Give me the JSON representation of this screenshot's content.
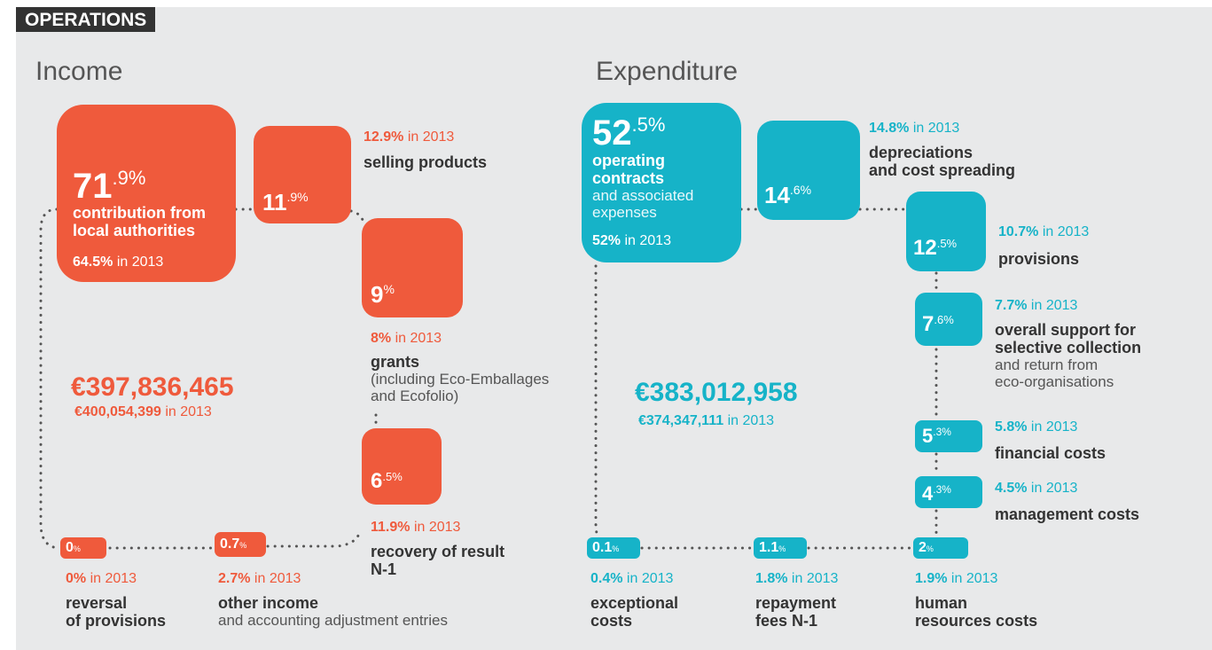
{
  "header": "OPERATIONS",
  "sections": [
    {
      "title": "Income",
      "color": "#ef5a3c",
      "total": "€397,836,465",
      "total_prev": {
        "value": "€400,054,399",
        "suffix": "in 2013"
      },
      "items": [
        {
          "big": "71",
          "small": ".9%",
          "bold": [
            "contribution from",
            "local authorities"
          ],
          "prev": {
            "value": "64.5%",
            "suffix": "in 2013"
          }
        },
        {
          "big": "11",
          "small": ".9%",
          "bold": [
            "selling products"
          ],
          "prev": {
            "value": "12.9%",
            "suffix": "in 2013"
          }
        },
        {
          "big": "9",
          "small": "%",
          "bold": [
            "grants"
          ],
          "normal": [
            "(including Eco-Emballages",
            "and Ecofolio)"
          ],
          "prev": {
            "value": "8%",
            "suffix": "in 2013"
          }
        },
        {
          "big": "6",
          "small": ".5%",
          "bold": [
            "recovery of result",
            "N-1"
          ],
          "prev": {
            "value": "11.9%",
            "suffix": "in 2013"
          }
        },
        {
          "big": "0",
          "small": "%",
          "bold": [
            "reversal",
            "of provisions"
          ],
          "prev": {
            "value": "0%",
            "suffix": "in 2013"
          }
        },
        {
          "big": "0.7",
          "small": "%",
          "bold": [
            "other income"
          ],
          "normal": [
            "and accounting adjustment entries"
          ],
          "prev": {
            "value": "2.7%",
            "suffix": "in 2013"
          }
        }
      ]
    },
    {
      "title": "Expenditure",
      "color": "#16b3c8",
      "total": "€383,012,958",
      "total_prev": {
        "value": "€374,347,111",
        "suffix": "in 2013"
      },
      "items": [
        {
          "big": "52",
          "small": ".5%",
          "bold": [
            "operating",
            "contracts"
          ],
          "normal": [
            "and associated",
            "expenses"
          ],
          "prev": {
            "value": "52%",
            "suffix": "in 2013"
          }
        },
        {
          "big": "14",
          "small": ".6%",
          "bold": [
            "depreciations",
            "and cost spreading"
          ],
          "prev": {
            "value": "14.8%",
            "suffix": "in 2013"
          }
        },
        {
          "big": "12",
          "small": ".5%",
          "bold": [
            "provisions"
          ],
          "prev": {
            "value": "10.7%",
            "suffix": "in 2013"
          }
        },
        {
          "big": "7",
          "small": ".6%",
          "bold": [
            "overall support for",
            "selective collection"
          ],
          "normal": [
            "and return from",
            "eco-organisations"
          ],
          "prev": {
            "value": "7.7%",
            "suffix": "in 2013"
          }
        },
        {
          "big": "5",
          "small": ".3%",
          "bold": [
            "financial costs"
          ],
          "prev": {
            "value": "5.8%",
            "suffix": "in 2013"
          }
        },
        {
          "big": "4",
          "small": ".3%",
          "bold": [
            "management costs"
          ],
          "prev": {
            "value": "4.5%",
            "suffix": "in 2013"
          }
        },
        {
          "big": "0.1",
          "small": "%",
          "bold": [
            "exceptional",
            "costs"
          ],
          "prev": {
            "value": "0.4%",
            "suffix": "in 2013"
          }
        },
        {
          "big": "1.1",
          "small": "%",
          "bold": [
            "repayment",
            "fees N-1"
          ],
          "prev": {
            "value": "1.8%",
            "suffix": "in 2013"
          }
        },
        {
          "big": "2",
          "small": "%",
          "bold": [
            "human",
            "resources costs"
          ],
          "prev": {
            "value": "1.9%",
            "suffix": "in 2013"
          }
        }
      ]
    }
  ]
}
